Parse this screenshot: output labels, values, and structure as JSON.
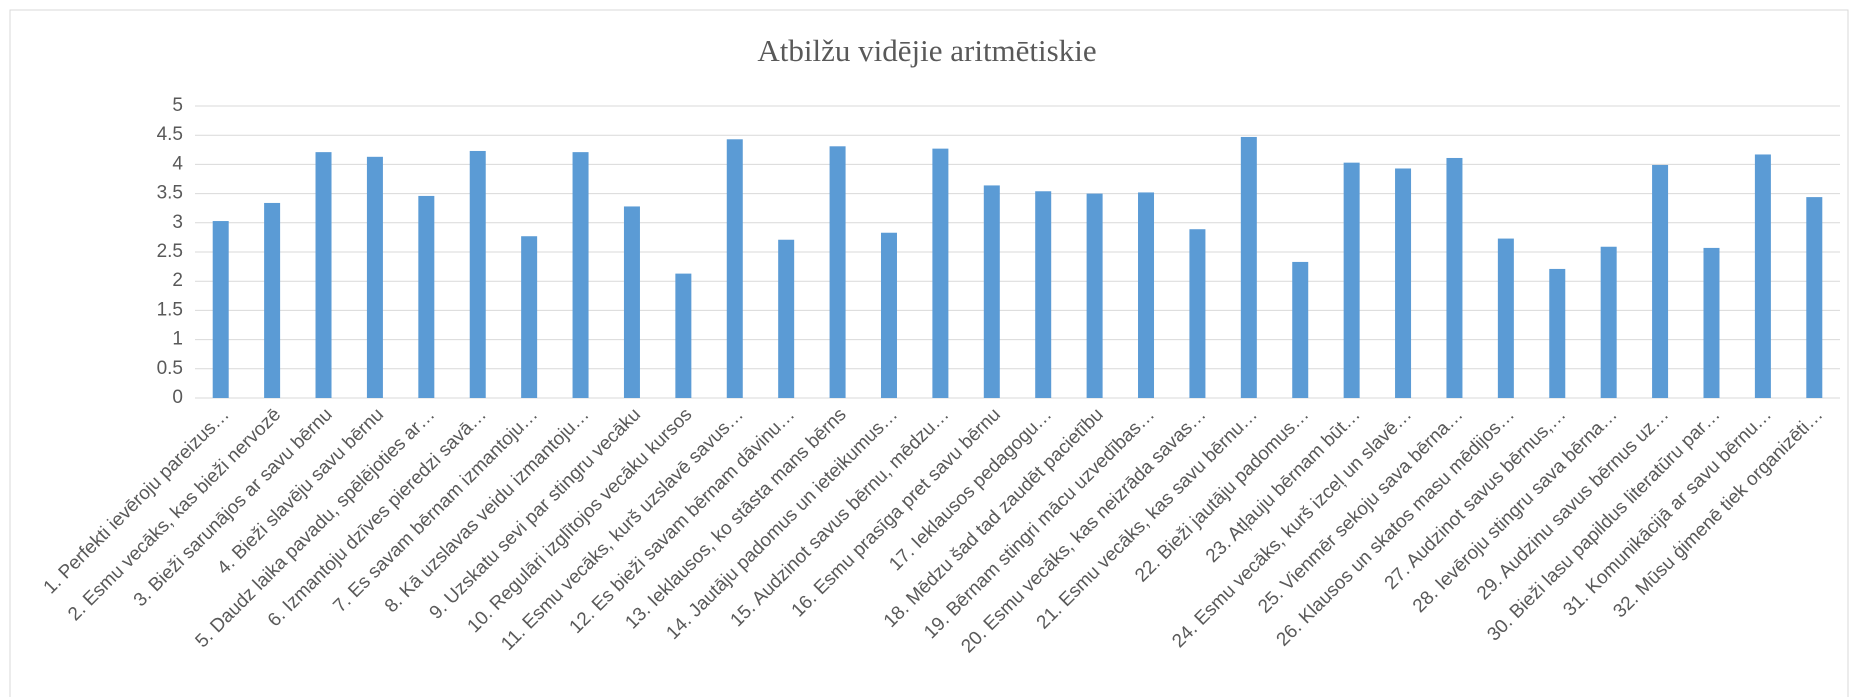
{
  "chart_data": {
    "type": "bar",
    "title": "Atbilžu vidējie aritmētiskie",
    "categories": [
      "1. Perfekti ievēroju pareizus…",
      "2. Esmu vecāks, kas bieži nervozē",
      "3. Bieži sarunājos ar savu bērnu",
      "4. Bieži slavēju savu bērnu",
      "5. Daudz laika pavadu, spēlējoties ar…",
      "6. Izmantoju dzīves pieredzi savā…",
      "7. Es savam bērnam izmantoju…",
      "8. Kā uzslavas veidu izmantoju…",
      "9. Uzskatu sevi par stingru vecāku",
      "10. Regulāri izglītojos vecāku kursos",
      "11. Esmu vecāks, kurš uzslavē savus…",
      "12. Es bieži savam bērnam dāvinu…",
      "13. Ieklausos, ko stāsta mans bērns",
      "14. Jautāju padomus un ieteikumus…",
      "15. Audzinot savus bērnu, mēdzu…",
      "16. Esmu prasīga pret savu bērnu",
      "17. Ieklausos pedagogu…",
      "18. Mēdzu šad tad zaudēt pacietību",
      "19. Bērnam stingri mācu uzvedības…",
      "20. Esmu vecāks, kas neizrāda savas…",
      "21. Esmu vecāks, kas savu bērnu…",
      "22. Bieži jautāju padomus…",
      "23. Atļauju bērnam būt…",
      "24. Esmu vecāks, kurš izceļ un slavē…",
      "25. Vienmēr sekoju sava bērna…",
      "26. Klausos un skatos masu mēdijos…",
      "27. Audzinot savus bērnus,…",
      "28. Ievēroju stingru sava bērna…",
      "29. Audzinu savus bērnus uz…",
      "30. Bieži lasu papildus literatūru par…",
      "31. Komunikācijā ar savu bērnu…",
      "32. Mūsu ģimenē tiek organizēti…"
    ],
    "values": [
      3.03,
      3.34,
      4.21,
      4.13,
      3.46,
      4.23,
      2.77,
      4.21,
      3.28,
      2.13,
      4.43,
      2.71,
      4.31,
      2.83,
      4.27,
      3.64,
      3.54,
      3.5,
      3.52,
      2.89,
      4.47,
      2.33,
      4.03,
      3.93,
      4.11,
      2.73,
      2.21,
      2.59,
      3.99,
      2.57,
      4.17,
      3.44
    ],
    "color": "#5b9bd5",
    "ylim": [
      0,
      5
    ],
    "yticks": [
      0,
      0.5,
      1,
      1.5,
      2,
      2.5,
      3,
      3.5,
      4,
      4.5,
      5
    ],
    "grid": true
  }
}
